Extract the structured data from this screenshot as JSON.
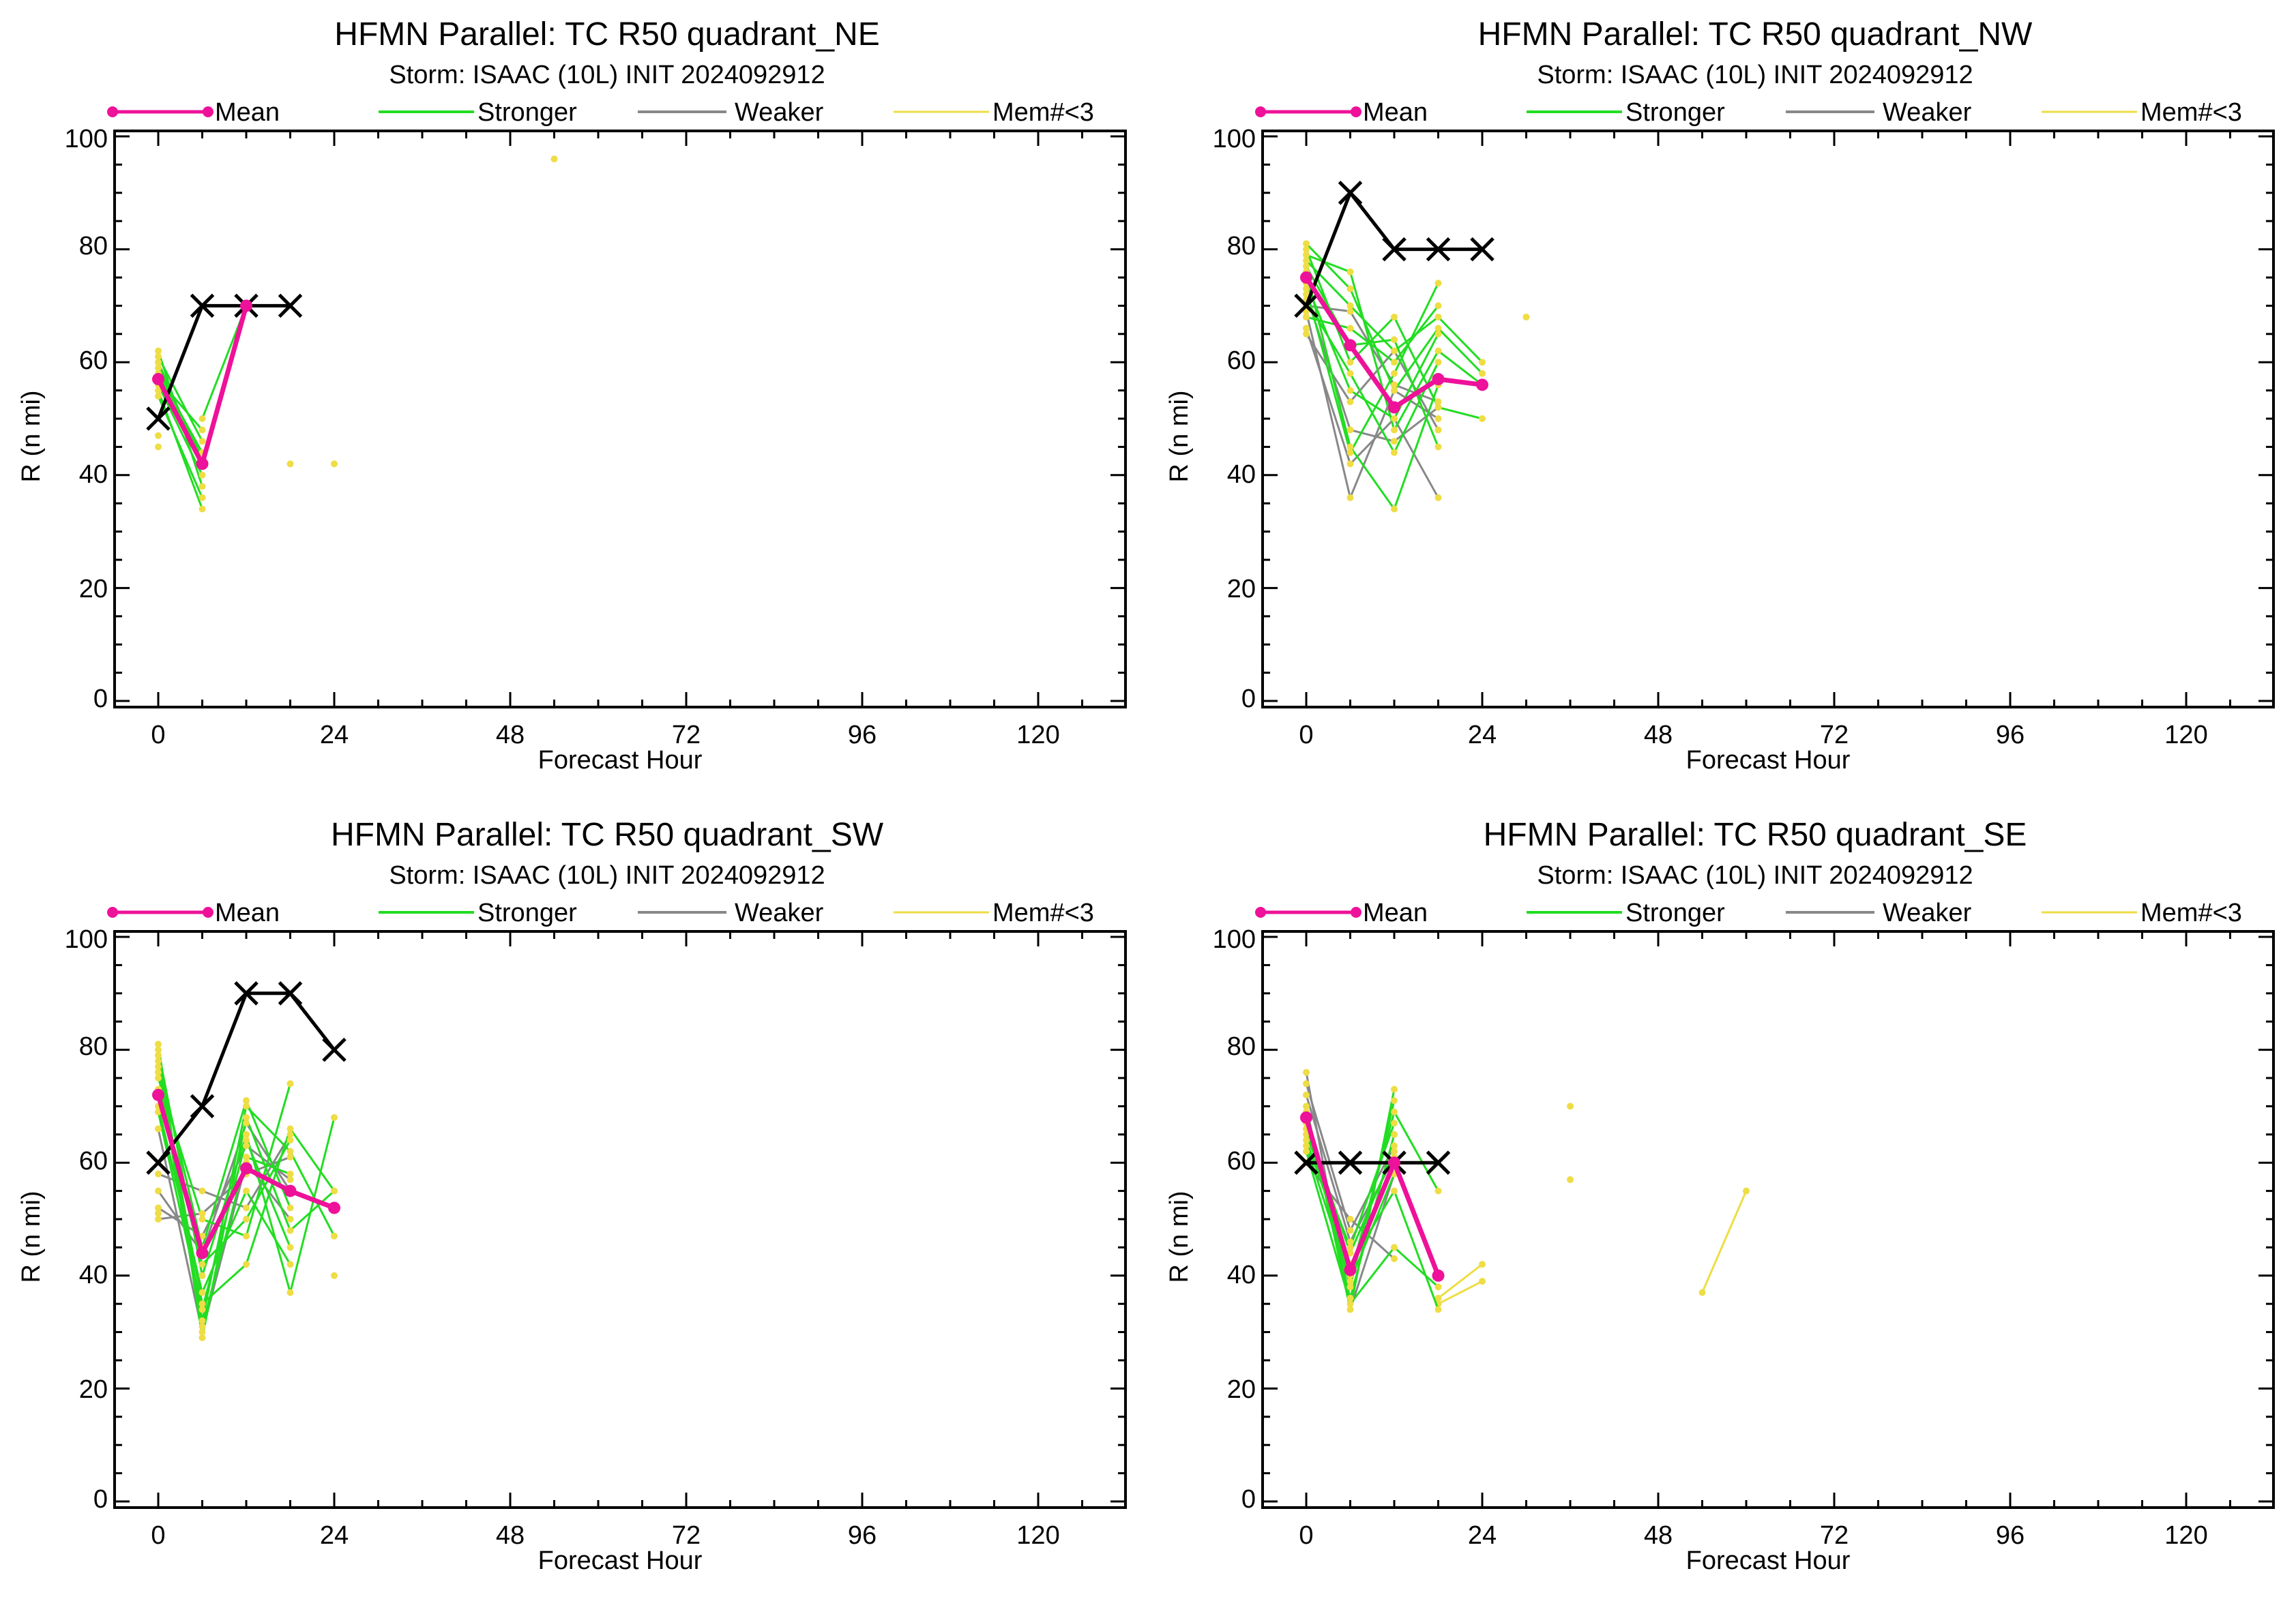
{
  "figure": {
    "panels": [
      {
        "title": "HFMN Parallel: TC  R50 quadrant_NE",
        "subtitle": "Storm: ISAAC (10L) INIT 2024092912",
        "legend": [
          "Mean",
          "Stronger",
          "Weaker",
          "Mem#<3"
        ],
        "xlabel": "Forecast Hour",
        "ylabel": "R (n mi)",
        "xticks": [
          "0",
          "24",
          "48",
          "72",
          "96",
          "120"
        ],
        "yticks": [
          "0",
          "20",
          "40",
          "60",
          "80",
          "100"
        ]
      },
      {
        "title": "HFMN Parallel: TC  R50 quadrant_NW",
        "subtitle": "Storm: ISAAC (10L) INIT 2024092912",
        "legend": [
          "Mean",
          "Stronger",
          "Weaker",
          "Mem#<3"
        ],
        "xlabel": "Forecast Hour",
        "ylabel": "R (n mi)",
        "xticks": [
          "0",
          "24",
          "48",
          "72",
          "96",
          "120"
        ],
        "yticks": [
          "0",
          "20",
          "40",
          "60",
          "80",
          "100"
        ]
      },
      {
        "title": "HFMN Parallel: TC  R50 quadrant_SW",
        "subtitle": "Storm: ISAAC (10L) INIT 2024092912",
        "legend": [
          "Mean",
          "Stronger",
          "Weaker",
          "Mem#<3"
        ],
        "xlabel": "Forecast Hour",
        "ylabel": "R (n mi)",
        "xticks": [
          "0",
          "24",
          "48",
          "72",
          "96",
          "120"
        ],
        "yticks": [
          "0",
          "20",
          "40",
          "60",
          "80",
          "100"
        ]
      },
      {
        "title": "HFMN Parallel: TC  R50 quadrant_SE",
        "subtitle": "Storm: ISAAC (10L) INIT 2024092912",
        "legend": [
          "Mean",
          "Stronger",
          "Weaker",
          "Mem#<3"
        ],
        "xlabel": "Forecast Hour",
        "ylabel": "R (n mi)",
        "xticks": [
          "0",
          "24",
          "48",
          "72",
          "96",
          "120"
        ],
        "yticks": [
          "0",
          "20",
          "40",
          "60",
          "80",
          "100"
        ]
      }
    ]
  },
  "colors": {
    "mean": "#ee1199",
    "stronger": "#22dd22",
    "weaker": "#888888",
    "few_members": "#eedd44",
    "best_track": "#000000"
  },
  "chart_data": [
    {
      "type": "line",
      "title": "HFMN Parallel: TC  R50 quadrant_NE",
      "subtitle": "Storm: ISAAC (10L) INIT 2024092912",
      "xlabel": "Forecast Hour",
      "ylabel": "R (n mi)",
      "xlim": [
        -6,
        132
      ],
      "ylim": [
        0,
        100
      ],
      "legend_position": "top",
      "best_track": {
        "x": [
          0,
          6,
          12,
          18
        ],
        "y": [
          50,
          70,
          70,
          70
        ]
      },
      "mean": {
        "x": [
          0,
          6,
          12
        ],
        "y": [
          57,
          42,
          70
        ]
      },
      "stronger": [
        {
          "x": [
            0,
            6
          ],
          "y": [
            62,
            38
          ]
        },
        {
          "x": [
            0,
            6
          ],
          "y": [
            60,
            42
          ]
        },
        {
          "x": [
            0,
            6
          ],
          "y": [
            58,
            44
          ]
        },
        {
          "x": [
            0,
            6
          ],
          "y": [
            56,
            40
          ]
        },
        {
          "x": [
            0,
            6
          ],
          "y": [
            55,
            34
          ]
        },
        {
          "x": [
            0,
            6
          ],
          "y": [
            61,
            46
          ]
        },
        {
          "x": [
            0,
            6
          ],
          "y": [
            57,
            48
          ]
        },
        {
          "x": [
            6,
            12
          ],
          "y": [
            50,
            70
          ]
        },
        {
          "x": [
            0,
            6
          ],
          "y": [
            54,
            36
          ]
        },
        {
          "x": [
            0,
            6
          ],
          "y": [
            59,
            43
          ]
        }
      ],
      "weaker": [],
      "few_members": [
        {
          "x": [
            0
          ],
          "y": [
            45
          ]
        },
        {
          "x": [
            0
          ],
          "y": [
            47
          ]
        },
        {
          "x": [
            18
          ],
          "y": [
            42
          ]
        },
        {
          "x": [
            24
          ],
          "y": [
            42
          ]
        },
        {
          "x": [
            54
          ],
          "y": [
            96
          ]
        }
      ]
    },
    {
      "type": "line",
      "title": "HFMN Parallel: TC  R50 quadrant_NW",
      "subtitle": "Storm: ISAAC (10L) INIT 2024092912",
      "xlabel": "Forecast Hour",
      "ylabel": "R (n mi)",
      "xlim": [
        -6,
        132
      ],
      "ylim": [
        0,
        100
      ],
      "legend_position": "top",
      "best_track": {
        "x": [
          0,
          6,
          12,
          18,
          24
        ],
        "y": [
          70,
          90,
          80,
          80,
          80
        ]
      },
      "mean": {
        "x": [
          0,
          6,
          12,
          18,
          24
        ],
        "y": [
          75,
          63,
          52,
          57,
          56
        ]
      },
      "stronger": [
        {
          "x": [
            0,
            6,
            12,
            18,
            24
          ],
          "y": [
            81,
            73,
            55,
            66,
            58
          ]
        },
        {
          "x": [
            0,
            6,
            12,
            18,
            24
          ],
          "y": [
            78,
            70,
            62,
            68,
            60
          ]
        },
        {
          "x": [
            0,
            6,
            12,
            18
          ],
          "y": [
            76,
            45,
            34,
            56
          ]
        },
        {
          "x": [
            0,
            6,
            12,
            18,
            24
          ],
          "y": [
            80,
            60,
            68,
            52,
            50
          ]
        },
        {
          "x": [
            0,
            6,
            12,
            18
          ],
          "y": [
            73,
            44,
            58,
            74
          ]
        },
        {
          "x": [
            0,
            6,
            12,
            18,
            24
          ],
          "y": [
            79,
            76,
            48,
            62,
            56
          ]
        },
        {
          "x": [
            0,
            6,
            12,
            18
          ],
          "y": [
            68,
            66,
            60,
            70
          ]
        },
        {
          "x": [
            0,
            6,
            12,
            18
          ],
          "y": [
            74,
            55,
            50,
            65
          ]
        },
        {
          "x": [
            0,
            6,
            12,
            18
          ],
          "y": [
            77,
            63,
            64,
            45
          ]
        },
        {
          "x": [
            0,
            6,
            12,
            18
          ],
          "y": [
            71,
            58,
            44,
            60
          ]
        }
      ],
      "weaker": [
        {
          "x": [
            0,
            6,
            12,
            18
          ],
          "y": [
            69,
            36,
            55,
            50
          ]
        },
        {
          "x": [
            0,
            6,
            12,
            18
          ],
          "y": [
            66,
            42,
            50,
            36
          ]
        },
        {
          "x": [
            0,
            6,
            12,
            18
          ],
          "y": [
            72,
            48,
            46,
            52
          ]
        },
        {
          "x": [
            0,
            6,
            12,
            18
          ],
          "y": [
            65,
            53,
            62,
            48
          ]
        },
        {
          "x": [
            0,
            6,
            12,
            18
          ],
          "y": [
            70,
            69,
            56,
            53
          ]
        }
      ],
      "few_members": [
        {
          "x": [
            0
          ],
          "y": [
            66
          ]
        },
        {
          "x": [
            0
          ],
          "y": [
            68
          ]
        },
        {
          "x": [
            30
          ],
          "y": [
            68
          ]
        }
      ]
    },
    {
      "type": "line",
      "title": "HFMN Parallel: TC  R50 quadrant_SW",
      "subtitle": "Storm: ISAAC (10L) INIT 2024092912",
      "xlabel": "Forecast Hour",
      "ylabel": "R (n mi)",
      "xlim": [
        -6,
        132
      ],
      "ylim": [
        0,
        100
      ],
      "legend_position": "top",
      "best_track": {
        "x": [
          0,
          6,
          12,
          18,
          24
        ],
        "y": [
          60,
          70,
          90,
          90,
          80
        ]
      },
      "mean": {
        "x": [
          0,
          6,
          12,
          18,
          24
        ],
        "y": [
          72,
          44,
          59,
          55,
          52
        ]
      },
      "stronger": [
        {
          "x": [
            0,
            6,
            12,
            18,
            24
          ],
          "y": [
            81,
            29,
            68,
            48,
            55
          ]
        },
        {
          "x": [
            0,
            6,
            12,
            18,
            24
          ],
          "y": [
            79,
            32,
            70,
            62,
            47
          ]
        },
        {
          "x": [
            0,
            6,
            12,
            18,
            24
          ],
          "y": [
            77,
            35,
            42,
            66,
            55
          ]
        },
        {
          "x": [
            0,
            6,
            12,
            18,
            24
          ],
          "y": [
            80,
            40,
            65,
            37,
            68
          ]
        },
        {
          "x": [
            0,
            6,
            12,
            18
          ],
          "y": [
            75,
            50,
            47,
            74
          ]
        },
        {
          "x": [
            0,
            6,
            12,
            18
          ],
          "y": [
            78,
            45,
            71,
            52
          ]
        },
        {
          "x": [
            0,
            6,
            12,
            18
          ],
          "y": [
            70,
            37,
            55,
            42
          ]
        },
        {
          "x": [
            0,
            6,
            12,
            18
          ],
          "y": [
            76,
            31,
            61,
            58
          ]
        },
        {
          "x": [
            0,
            6,
            12,
            18
          ],
          "y": [
            73,
            42,
            50,
            64
          ]
        },
        {
          "x": [
            0,
            6,
            12,
            18
          ],
          "y": [
            69,
            34,
            64,
            45
          ]
        }
      ],
      "weaker": [
        {
          "x": [
            0,
            6,
            12,
            18
          ],
          "y": [
            52,
            47,
            63,
            57
          ]
        },
        {
          "x": [
            0,
            6,
            12,
            18
          ],
          "y": [
            50,
            51,
            58,
            61
          ]
        },
        {
          "x": [
            0,
            6,
            12,
            18
          ],
          "y": [
            66,
            30,
            60,
            50
          ]
        },
        {
          "x": [
            0,
            6,
            12,
            18
          ],
          "y": [
            58,
            55,
            52,
            65
          ]
        },
        {
          "x": [
            0,
            6,
            12,
            18
          ],
          "y": [
            55,
            44,
            67,
            55
          ]
        }
      ],
      "few_members": [
        {
          "x": [
            0
          ],
          "y": [
            66
          ]
        },
        {
          "x": [
            0
          ],
          "y": [
            51
          ]
        },
        {
          "x": [
            24
          ],
          "y": [
            40
          ]
        }
      ]
    },
    {
      "type": "line",
      "title": "HFMN Parallel: TC  R50 quadrant_SE",
      "subtitle": "Storm: ISAAC (10L) INIT 2024092912",
      "xlabel": "Forecast Hour",
      "ylabel": "R (n mi)",
      "xlim": [
        -6,
        132
      ],
      "ylim": [
        0,
        100
      ],
      "legend_position": "top",
      "best_track": {
        "x": [
          0,
          6,
          12,
          18
        ],
        "y": [
          60,
          60,
          60,
          60
        ]
      },
      "mean": {
        "x": [
          0,
          6,
          12,
          18
        ],
        "y": [
          68,
          41,
          60,
          40
        ]
      },
      "stronger": [
        {
          "x": [
            0,
            6,
            12
          ],
          "y": [
            70,
            34,
            73
          ]
        },
        {
          "x": [
            0,
            6,
            12
          ],
          "y": [
            68,
            38,
            71
          ]
        },
        {
          "x": [
            0,
            6,
            12,
            18
          ],
          "y": [
            66,
            40,
            69,
            55
          ]
        },
        {
          "x": [
            0,
            6,
            12
          ],
          "y": [
            65,
            45,
            67
          ]
        },
        {
          "x": [
            0,
            6,
            12
          ],
          "y": [
            69,
            36,
            65
          ]
        },
        {
          "x": [
            0,
            6,
            12,
            18
          ],
          "y": [
            64,
            42,
            55,
            34
          ]
        },
        {
          "x": [
            0,
            6,
            12
          ],
          "y": [
            67,
            44,
            62
          ]
        },
        {
          "x": [
            0,
            6,
            12
          ],
          "y": [
            63,
            39,
            58
          ]
        },
        {
          "x": [
            0,
            6,
            12,
            18
          ],
          "y": [
            62,
            35,
            45,
            38
          ]
        }
      ],
      "weaker": [
        {
          "x": [
            0,
            6,
            12
          ],
          "y": [
            76,
            34,
            58
          ]
        },
        {
          "x": [
            0,
            6,
            12
          ],
          "y": [
            74,
            48,
            63
          ]
        },
        {
          "x": [
            0,
            6,
            12
          ],
          "y": [
            60,
            50,
            43
          ]
        },
        {
          "x": [
            0,
            6,
            12
          ],
          "y": [
            72,
            46,
            61
          ]
        }
      ],
      "few_members": [
        {
          "x": [
            18,
            24
          ],
          "y": [
            36,
            42
          ]
        },
        {
          "x": [
            18,
            24
          ],
          "y": [
            35,
            39
          ]
        },
        {
          "x": [
            36
          ],
          "y": [
            70
          ]
        },
        {
          "x": [
            36
          ],
          "y": [
            57
          ]
        },
        {
          "x": [
            54,
            60
          ],
          "y": [
            37,
            55
          ]
        }
      ]
    }
  ]
}
